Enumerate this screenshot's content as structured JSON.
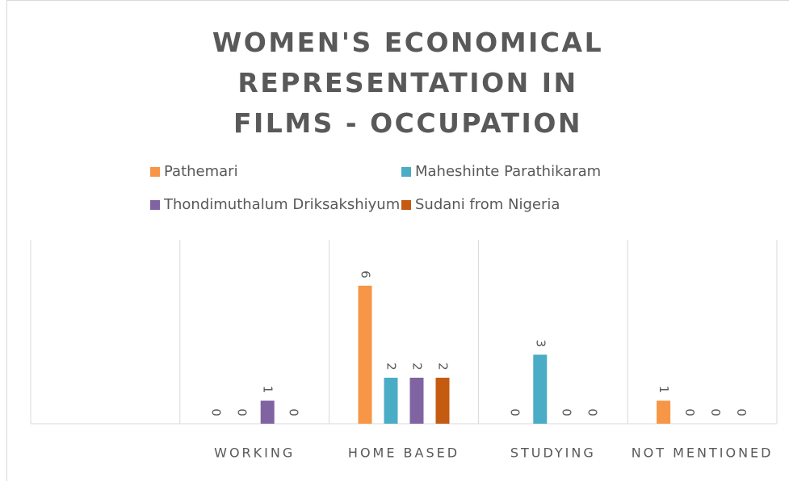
{
  "chart_data": {
    "type": "bar",
    "title": "WOMEN'S ECONOMICAL REPRESENTATION IN FILMS - OCCUPATION",
    "categories": [
      null,
      "WORKING",
      "HOME BASED",
      "STUDYING",
      "NOT MENTIONED"
    ],
    "series": [
      {
        "name": "Pathemari",
        "color": "#f79646",
        "values": [
          null,
          0,
          6,
          0,
          1
        ]
      },
      {
        "name": "Maheshinte Parathikaram",
        "color": "#4bacc6",
        "values": [
          null,
          0,
          2,
          3,
          0
        ]
      },
      {
        "name": "Thondimuthalum Driksakshiyum",
        "color": "#8064a2",
        "values": [
          null,
          1,
          2,
          0,
          0
        ]
      },
      {
        "name": "Sudani from Nigeria",
        "color": "#c55a11",
        "values": [
          null,
          0,
          2,
          0,
          0
        ]
      }
    ],
    "ylim": [
      0,
      8
    ],
    "legend": "top",
    "grid": true
  }
}
